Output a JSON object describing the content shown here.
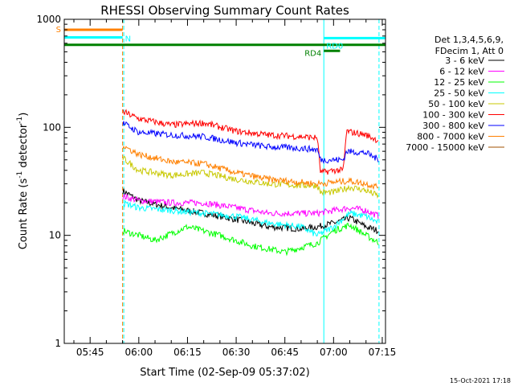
{
  "chart_data": {
    "type": "line",
    "title": "RHESSI Observing Summary Count Rates",
    "xlabel": "Start Time (02-Sep-09 05:37:02)",
    "ylabel_parts": [
      "Count Rate (s",
      "-1",
      " detector",
      "-1",
      ")"
    ],
    "yscale": "log",
    "ylim": [
      1,
      1000
    ],
    "xlim": [
      "05:37:02",
      "07:16:00"
    ],
    "x_ticks": [
      "05:45",
      "06:00",
      "06:15",
      "06:30",
      "06:45",
      "07:00",
      "07:15"
    ],
    "y_ticks": [
      "1",
      "10",
      "100",
      "1000"
    ],
    "legend_header": [
      "Det 1,3,4,5,6,9,",
      "FDecim 1, Att 0"
    ],
    "legend_placement": "right",
    "series": [
      {
        "name": "3 - 6 keV",
        "color": "#000000",
        "x": [
          "05:55:00",
          "06:00:00",
          "06:10:00",
          "06:20:00",
          "06:30:00",
          "06:40:00",
          "06:50:00",
          "06:55:00",
          "07:00:00",
          "07:05:00",
          "07:10:00",
          "07:14:00"
        ],
        "y": [
          26,
          21,
          18,
          16,
          14,
          12,
          11.5,
          12,
          13,
          14.5,
          12,
          11
        ]
      },
      {
        "name": "6 - 12 keV",
        "color": "#ff00ff",
        "x": [
          "05:55:00",
          "06:00:00",
          "06:10:00",
          "06:20:00",
          "06:30:00",
          "06:40:00",
          "06:50:00",
          "06:55:00",
          "07:00:00",
          "07:05:00",
          "07:10:00",
          "07:14:00"
        ],
        "y": [
          23,
          21,
          20,
          20,
          18,
          16,
          16,
          16,
          17,
          18,
          17,
          15
        ]
      },
      {
        "name": "12 - 25 keV",
        "color": "#00ff00",
        "x": [
          "05:55:00",
          "06:00:00",
          "06:05:00",
          "06:15:00",
          "06:25:00",
          "06:35:00",
          "06:45:00",
          "06:55:00",
          "07:00:00",
          "07:05:00",
          "07:10:00",
          "07:14:00"
        ],
        "y": [
          11,
          10,
          9,
          12,
          10,
          8,
          7,
          8.5,
          11,
          12.5,
          10,
          8.5
        ]
      },
      {
        "name": "25 - 50 keV",
        "color": "#00ffff",
        "x": [
          "05:55:00",
          "06:00:00",
          "06:10:00",
          "06:20:00",
          "06:30:00",
          "06:40:00",
          "06:50:00",
          "06:55:00",
          "07:00:00",
          "07:05:00",
          "07:10:00",
          "07:14:00"
        ],
        "y": [
          20,
          18,
          17,
          16,
          15,
          13,
          12,
          10,
          12,
          16,
          15,
          13
        ]
      },
      {
        "name": "50 - 100 keV",
        "color": "#c8c800",
        "x": [
          "05:55:00",
          "06:00:00",
          "06:10:00",
          "06:20:00",
          "06:30:00",
          "06:40:00",
          "06:50:00",
          "06:55:00",
          "06:56:00",
          "07:00:00",
          "07:05:00",
          "07:10:00",
          "07:14:00"
        ],
        "y": [
          52,
          40,
          36,
          38,
          33,
          30,
          29,
          29,
          25,
          25,
          28,
          26,
          23
        ]
      },
      {
        "name": "100 - 300 keV",
        "color": "#ff0000",
        "x": [
          "05:55:00",
          "06:00:00",
          "06:10:00",
          "06:20:00",
          "06:30:00",
          "06:40:00",
          "06:50:00",
          "06:55:00",
          "06:56:00",
          "07:00:00",
          "07:03:00",
          "07:04:00",
          "07:10:00",
          "07:14:00"
        ],
        "y": [
          140,
          120,
          105,
          110,
          92,
          85,
          82,
          80,
          38,
          40,
          40,
          92,
          85,
          75
        ]
      },
      {
        "name": "300 - 800 keV",
        "color": "#0000ff",
        "x": [
          "05:55:00",
          "06:00:00",
          "06:10:00",
          "06:20:00",
          "06:30:00",
          "06:40:00",
          "06:50:00",
          "06:55:00",
          "06:56:00",
          "07:00:00",
          "07:03:00",
          "07:04:00",
          "07:10:00",
          "07:14:00"
        ],
        "y": [
          110,
          90,
          85,
          82,
          72,
          66,
          64,
          62,
          50,
          50,
          50,
          60,
          58,
          50
        ]
      },
      {
        "name": "800 - 7000 keV",
        "color": "#ff8000",
        "x": [
          "05:55:00",
          "06:00:00",
          "06:10:00",
          "06:20:00",
          "06:30:00",
          "06:40:00",
          "06:50:00",
          "06:55:00",
          "07:00:00",
          "07:05:00",
          "07:10:00",
          "07:14:00"
        ],
        "y": [
          68,
          56,
          48,
          46,
          38,
          33,
          31,
          30,
          31,
          32,
          30,
          28
        ]
      },
      {
        "name": "7000 - 15000 keV",
        "color": "#a05000",
        "x": [],
        "y": []
      }
    ],
    "state_bars": [
      {
        "label": "S",
        "color": "#ff8000",
        "start": "05:37:02",
        "end": "05:55:00",
        "value": 800
      },
      {
        "label": "N",
        "color": "#00ffff",
        "start": "05:37:02",
        "end": "05:55:00",
        "value": 680
      },
      {
        "label": "",
        "color": "#008000",
        "start": "05:37:02",
        "end": "07:16:00",
        "value": 580
      },
      {
        "label": "RD0",
        "color": "#00ffff",
        "start": "06:57:00",
        "end": "07:16:00",
        "value": 670
      },
      {
        "label": "RD4",
        "color": "#008000",
        "start": "06:57:00",
        "end": "07:02:00",
        "value": 510
      }
    ],
    "vertical_markers": [
      {
        "time": "05:37:02",
        "color": "#00c000",
        "style": "solid"
      },
      {
        "time": "05:55:00",
        "color": "#ff8000",
        "style": "dashed"
      },
      {
        "time": "05:55:00",
        "color": "#00ffff",
        "style": "dashed"
      },
      {
        "time": "06:57:00",
        "color": "#00ffff",
        "style": "solid"
      },
      {
        "time": "07:14:00",
        "color": "#00ffff",
        "style": "dashed"
      }
    ],
    "grid": false
  },
  "footer": {
    "timestamp": "15-Oct-2021 17:18"
  }
}
